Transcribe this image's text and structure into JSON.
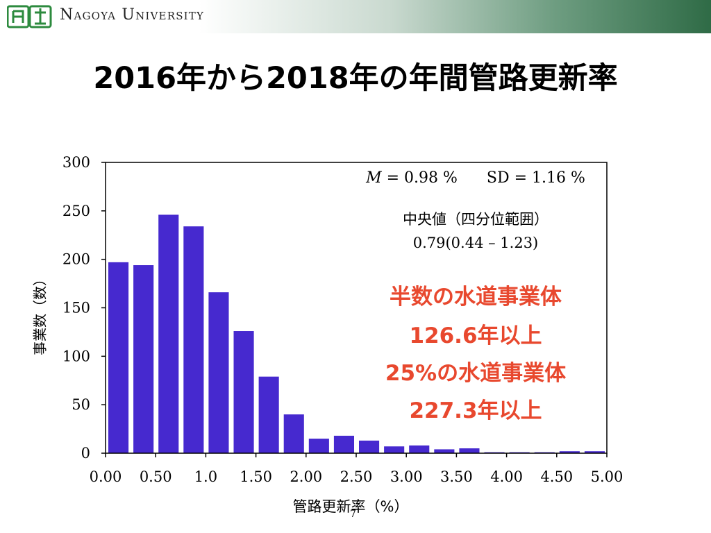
{
  "header": {
    "university_name": "Nagoya University",
    "logo_text": "名大"
  },
  "slide": {
    "title": "2016年から2018年の年間管路更新率",
    "page_number": "7"
  },
  "annotations": {
    "stats_m_symbol": "M",
    "stats_m_value": " = 0.98 %",
    "stats_sd": "SD = 1.16 %",
    "median_label": "中央値（四分位範囲）",
    "median_value": "0.79(0.44 – 1.23)",
    "highlights": [
      "半数の水道事業体",
      "126.6年以上",
      "25%の水道事業体",
      "227.3年以上"
    ]
  },
  "colors": {
    "bar": "#4629cf",
    "highlight": "#e8482e"
  },
  "chart_data": {
    "type": "bar",
    "xlabel": "管路更新率（%）",
    "ylabel": "事業数（数）",
    "ylim": [
      0,
      300
    ],
    "yticks": [
      0,
      50,
      100,
      150,
      200,
      250,
      300
    ],
    "xlim": [
      0,
      5
    ],
    "xticks": [
      "0.00",
      "0.50",
      "1.0",
      "1.50",
      "2.00",
      "2.50",
      "3.00",
      "3.50",
      "4.00",
      "4.50",
      "5.00"
    ],
    "bin_width": 0.25,
    "values": [
      197,
      194,
      246,
      234,
      166,
      126,
      79,
      40,
      15,
      18,
      13,
      7,
      8,
      4,
      5,
      1,
      1,
      1,
      2,
      2
    ],
    "grid": false
  }
}
